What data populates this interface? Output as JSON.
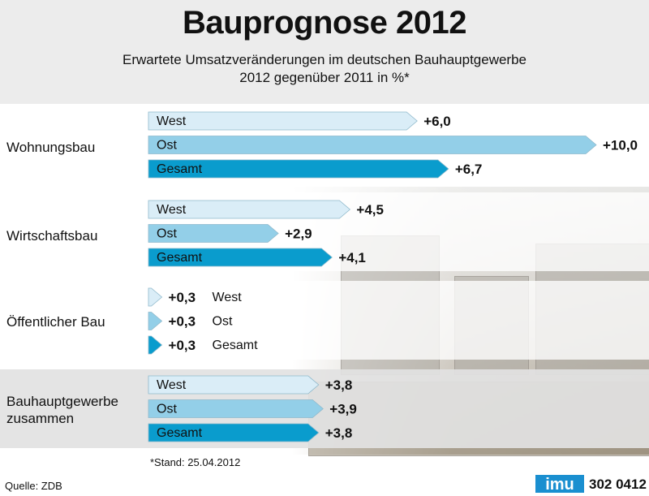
{
  "title": "Bauprognose 2012",
  "subtitle_line1": "Erwartete Umsatzveränderungen im deutschen Bauhauptgewerbe",
  "subtitle_line2": "2012 gegenüber 2011 in %*",
  "note": "*Stand: 25.04.2012",
  "source": "Quelle: ZDB",
  "logo_text": "imu",
  "code": "302 0412",
  "colors": {
    "west": "#daedf7",
    "ost": "#93cfe8",
    "gesamt": "#0a9ccd",
    "stroke": "#8fb9cb"
  },
  "chart_data": {
    "type": "bar",
    "orientation": "horizontal",
    "title": "Bauprognose 2012",
    "subtitle": "Erwartete Umsatzveränderungen im deutschen Bauhauptgewerbe 2012 gegenüber 2011 in %*",
    "categories": [
      "Wohnungsbau",
      "Wirtschaftsbau",
      "Öffentlicher Bau",
      "Bauhauptgewerbe zusammen"
    ],
    "series": [
      {
        "name": "West",
        "values": [
          6.0,
          4.5,
          0.3,
          3.8
        ],
        "labels": [
          "+6,0",
          "+4,5",
          "+0,3",
          "+3,8"
        ]
      },
      {
        "name": "Ost",
        "values": [
          10.0,
          2.9,
          0.3,
          3.9
        ],
        "labels": [
          "+10,0",
          "+2,9",
          "+0,3",
          "+3,9"
        ]
      },
      {
        "name": "Gesamt",
        "values": [
          6.7,
          4.1,
          0.3,
          3.8
        ],
        "labels": [
          "+6,7",
          "+4,1",
          "+0,3",
          "+3,8"
        ]
      }
    ],
    "xlim": [
      0,
      10
    ],
    "legend": "inline",
    "grid": false
  }
}
